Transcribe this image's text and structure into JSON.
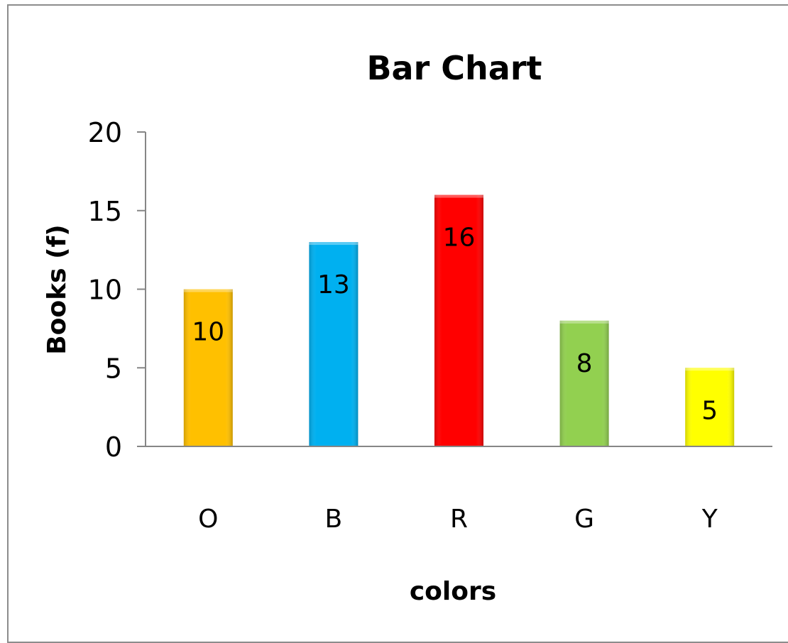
{
  "chart_data": {
    "type": "bar",
    "title": "Bar Chart",
    "xlabel": "colors",
    "ylabel": "Books (f)",
    "categories": [
      "O",
      "B",
      "R",
      "G",
      "Y"
    ],
    "values": [
      10,
      13,
      16,
      8,
      5
    ],
    "data_labels": [
      "10",
      "13",
      "16",
      "8",
      "5"
    ],
    "ylim": [
      0,
      20
    ],
    "yticks": [
      0,
      5,
      10,
      15,
      20
    ],
    "ytick_labels": [
      "0",
      "5",
      "10",
      "15",
      "20"
    ],
    "colors": [
      "#FFC000",
      "#00B0F0",
      "#FF0000",
      "#92D050",
      "#FFFF00"
    ],
    "grid": false,
    "legend": "none"
  }
}
